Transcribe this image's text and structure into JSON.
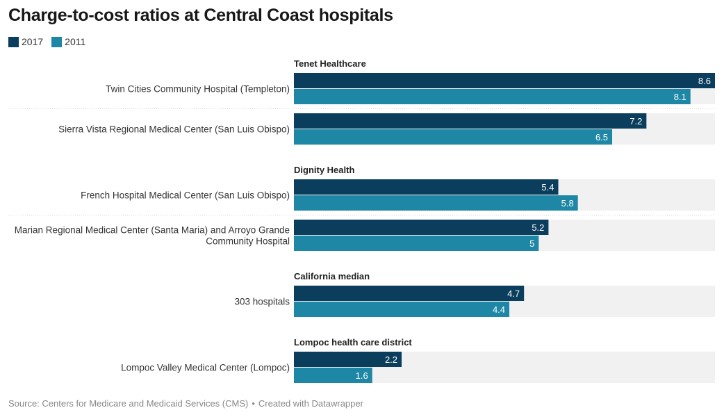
{
  "page": {
    "title": "Charge-to-cost ratios at Central Coast hospitals",
    "footer_source": "Source: Centers for Medicare and Medicaid Services (CMS)",
    "footer_separator": "•",
    "footer_credit": "Created with Datawrapper"
  },
  "colors": {
    "y2017": "#0b3d5c",
    "y2011": "#1f87a6",
    "track": "#f1f1f1",
    "divider": "#d5d5d5",
    "bar_text": "#ffffff"
  },
  "chart_data": {
    "type": "bar",
    "orientation": "horizontal",
    "title": "Charge-to-cost ratios at Central Coast hospitals",
    "xlim": [
      0,
      8.6
    ],
    "series": [
      {
        "name": "2017",
        "color": "#0b3d5c"
      },
      {
        "name": "2011",
        "color": "#1f87a6"
      }
    ],
    "groups": [
      {
        "name": "Tenet Healthcare",
        "rows": [
          {
            "label": [
              "Twin Cities Community Hospital (Templeton)"
            ],
            "values": [
              8.6,
              8.1
            ]
          },
          {
            "label": [
              "Sierra Vista Regional Medical Center (San Luis Obispo)"
            ],
            "values": [
              7.2,
              6.5
            ]
          }
        ]
      },
      {
        "name": "Dignity Health",
        "rows": [
          {
            "label": [
              "French Hospital Medical Center (San Luis Obispo)"
            ],
            "values": [
              5.4,
              5.8
            ]
          },
          {
            "label": [
              "Marian Regional Medical Center (Santa Maria) and Arroyo Grande",
              "Community Hospital"
            ],
            "values": [
              5.2,
              5
            ]
          }
        ]
      },
      {
        "name": "California median",
        "rows": [
          {
            "label": [
              "303 hospitals"
            ],
            "values": [
              4.7,
              4.4
            ]
          }
        ]
      },
      {
        "name": "Lompoc health care district",
        "rows": [
          {
            "label": [
              "Lompoc Valley Medical Center (Lompoc)"
            ],
            "values": [
              2.2,
              1.6
            ]
          }
        ]
      }
    ]
  }
}
